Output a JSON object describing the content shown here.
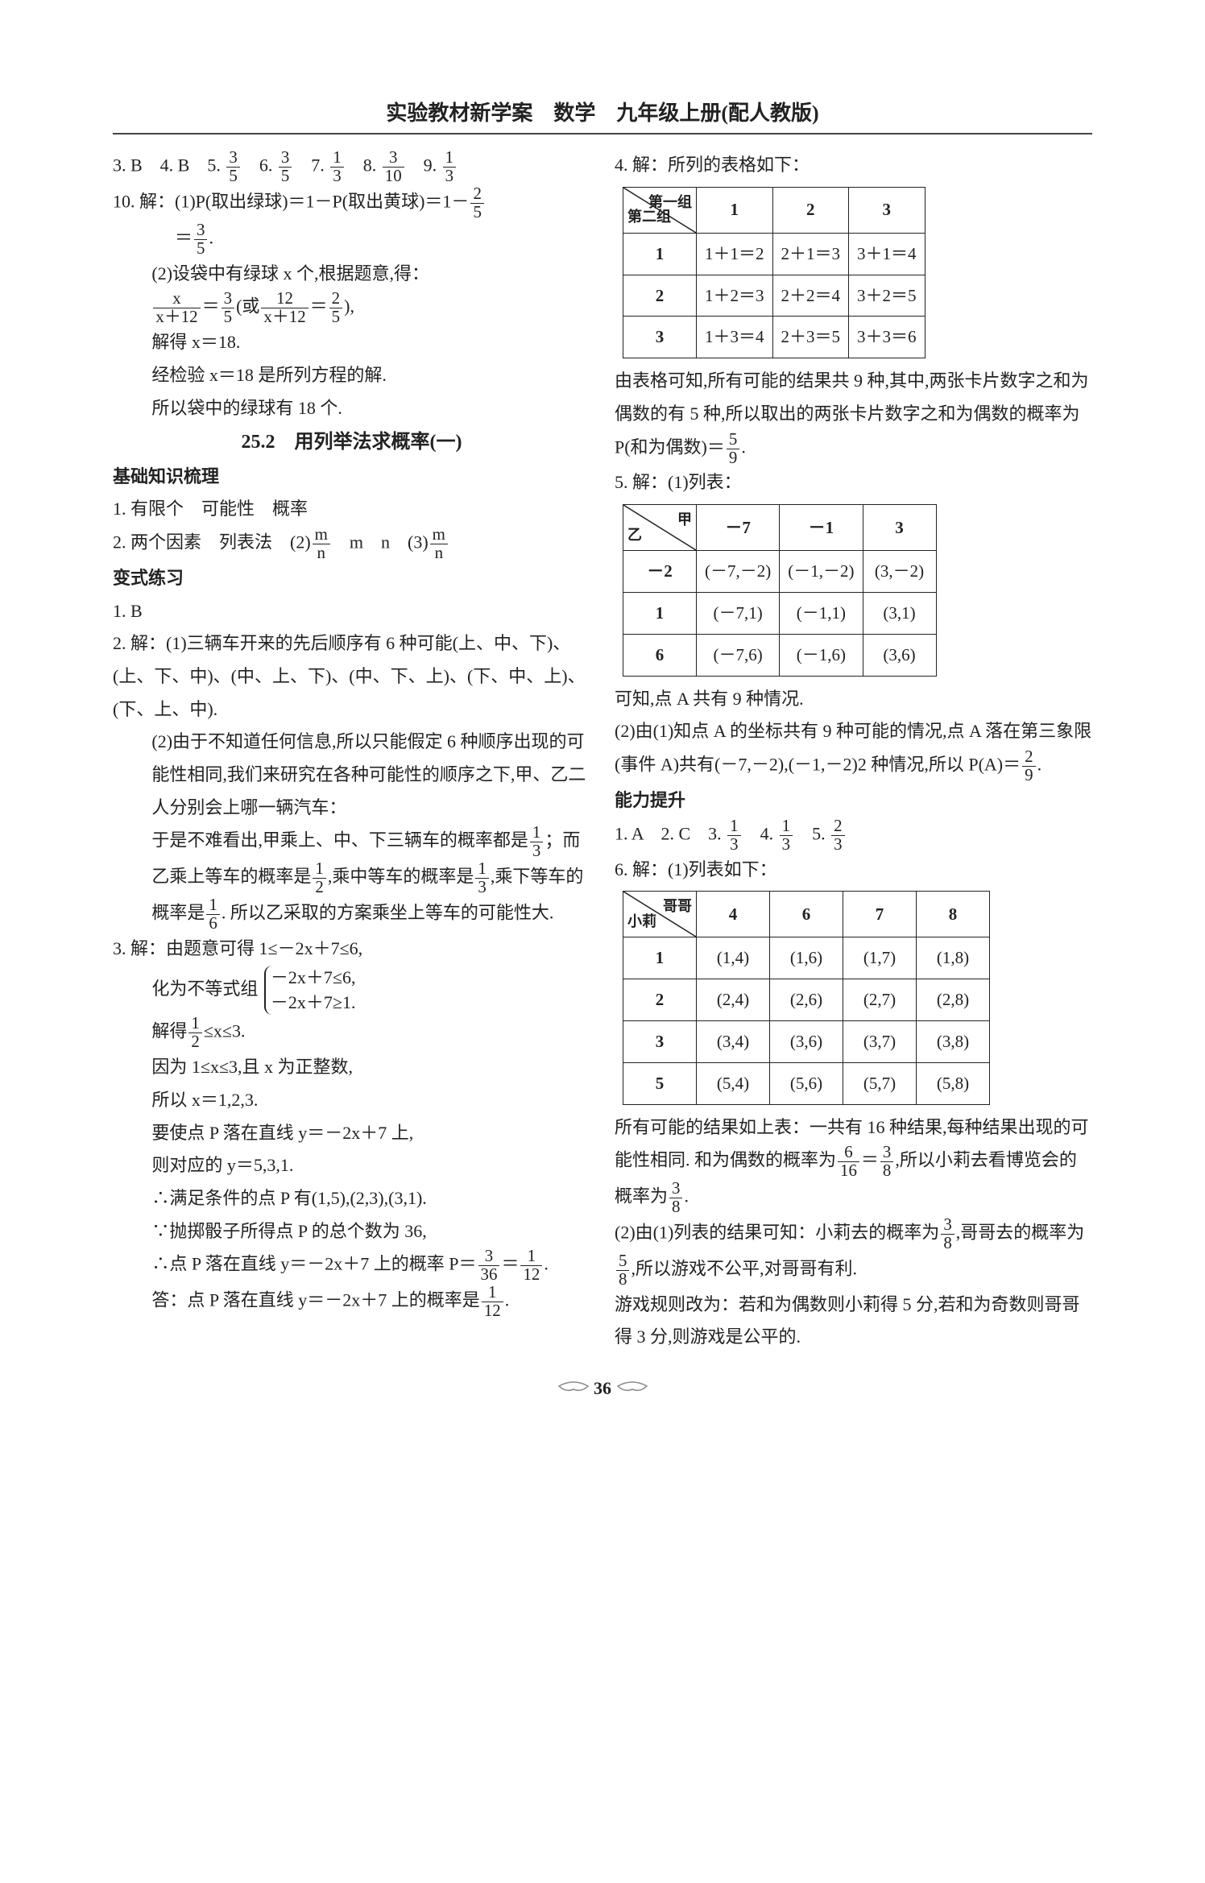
{
  "header": "实验教材新学案　数学　九年级上册(配人教版)",
  "page_number": "36",
  "left": {
    "line1": "3. B　4. B　5. <f>3|5</f>　6. <f>3|5</f>　7. <f>1|3</f>　8. <f>3|10</f>　9. <f>1|3</f>",
    "line2a": "10. 解：(1)P(取出绿球)＝1－P(取出黄球)＝1－<f>2|5</f>",
    "line2b": "＝<f>3|5</f>.",
    "line3": "(2)设袋中有绿球 x 个,根据题意,得：",
    "line4": "<f>x|x＋12</f>＝<f>3|5</f>(或<f>12|x＋12</f>＝<f>2|5</f>),",
    "line5": "解得 x＝18.",
    "line6": "经检验 x＝18 是所列方程的解.",
    "line7": "所以袋中的绿球有 18 个.",
    "sect_title": "25.2　用列举法求概率(一)",
    "sub1": "基础知识梳理",
    "k1": "1. 有限个　可能性　概率",
    "k2": "2. 两个因素　列表法　(2)<f>m|n</f>　m　n　(3)<f>m|n</f>",
    "sub2": "变式练习",
    "v1": "1. B",
    "v2a": "2. 解：(1)三辆车开来的先后顺序有 6 种可能(上、中、下)、(上、下、中)、(中、上、下)、(中、下、上)、(下、中、上)、(下、上、中).",
    "v2b": "(2)由于不知道任何信息,所以只能假定 6 种顺序出现的可能性相同,我们来研究在各种可能性的顺序之下,甲、乙二人分别会上哪一辆汽车：",
    "v2c": "于是不难看出,甲乘上、中、下三辆车的概率都是<f>1|3</f>；而乙乘上等车的概率是<f>1|2</f>,乘中等车的概率是<f>1|3</f>,乘下等车的概率是<f>1|6</f>. 所以乙采取的方案乘坐上等车的可能性大.",
    "v3a": "3. 解：由题意可得 1≤－2x＋7≤6,",
    "v3b_label": "化为不等式组",
    "v3b_brace1": "－2x＋7≤6,",
    "v3b_brace2": "－2x＋7≥1.",
    "v3c": "解得<f>1|2</f>≤x≤3.",
    "v3d": "因为 1≤x≤3,且 x 为正整数,",
    "v3e": "所以 x＝1,2,3.",
    "v3f": "要使点 P 落在直线 y＝－2x＋7 上,",
    "v3g": "则对应的 y＝5,3,1.",
    "v3h": "∴满足条件的点 P 有(1,5),(2,3),(3,1).",
    "v3i": "∵抛掷骰子所得点 P 的总个数为 36,",
    "v3j": "∴点 P 落在直线 y＝－2x＋7 上的概率 P＝<f>3|36</f>＝<f>1|12</f>.",
    "v3k": "答：点 P 落在直线 y＝－2x＋7 上的概率是<f>1|12</f>."
  },
  "right": {
    "r4a": "4. 解：所列的表格如下：",
    "table1": {
      "diag_tr": "第一组",
      "diag_bl": "第二组",
      "cols": [
        "1",
        "2",
        "3"
      ],
      "rows": [
        [
          "1",
          "1＋1＝2",
          "2＋1＝3",
          "3＋1＝4"
        ],
        [
          "2",
          "1＋2＝3",
          "2＋2＝4",
          "3＋2＝5"
        ],
        [
          "3",
          "1＋3＝4",
          "2＋3＝5",
          "3＋3＝6"
        ]
      ]
    },
    "r4b": "由表格可知,所有可能的结果共 9 种,其中,两张卡片数字之和为偶数的有 5 种,所以取出的两张卡片数字之和为偶数的概率为 P(和为偶数)＝<f>5|9</f>.",
    "r5a": "5. 解：(1)列表：",
    "table2": {
      "diag_tr": "甲",
      "diag_bl": "乙",
      "cols": [
        "－7",
        "－1",
        "3"
      ],
      "rows": [
        [
          "－2",
          "(－7,－2)",
          "(－1,－2)",
          "(3,－2)"
        ],
        [
          "1",
          "(－7,1)",
          "(－1,1)",
          "(3,1)"
        ],
        [
          "6",
          "(－7,6)",
          "(－1,6)",
          "(3,6)"
        ]
      ]
    },
    "r5b": "可知,点 A 共有 9 种情况.",
    "r5c": "(2)由(1)知点 A 的坐标共有 9 种可能的情况,点 A 落在第三象限(事件 A)共有(－7,－2),(－1,－2)2 种情况,所以 P(A)＝<f>2|9</f>.",
    "sub3": "能力提升",
    "n1": "1. A　2. C　3. <f>1|3</f>　4. <f>1|3</f>　5. <f>2|3</f>",
    "n6a": "6. 解：(1)列表如下：",
    "table3": {
      "diag_tr": "哥哥",
      "diag_bl": "小莉",
      "cols": [
        "4",
        "6",
        "7",
        "8"
      ],
      "rows": [
        [
          "1",
          "(1,4)",
          "(1,6)",
          "(1,7)",
          "(1,8)"
        ],
        [
          "2",
          "(2,4)",
          "(2,6)",
          "(2,7)",
          "(2,8)"
        ],
        [
          "3",
          "(3,4)",
          "(3,6)",
          "(3,7)",
          "(3,8)"
        ],
        [
          "5",
          "(5,4)",
          "(5,6)",
          "(5,7)",
          "(5,8)"
        ]
      ]
    },
    "n6b": "所有可能的结果如上表：一共有 16 种结果,每种结果出现的可能性相同. 和为偶数的概率为<f>6|16</f>＝<f>3|8</f>,所以小莉去看博览会的概率为<f>3|8</f>.",
    "n6c": "(2)由(1)列表的结果可知：小莉去的概率为<f>3|8</f>,哥哥去的概率为<f>5|8</f>,所以游戏不公平,对哥哥有利.",
    "n6d": "游戏规则改为：若和为偶数则小莉得 5 分,若和为奇数则哥哥得 3 分,则游戏是公平的."
  }
}
